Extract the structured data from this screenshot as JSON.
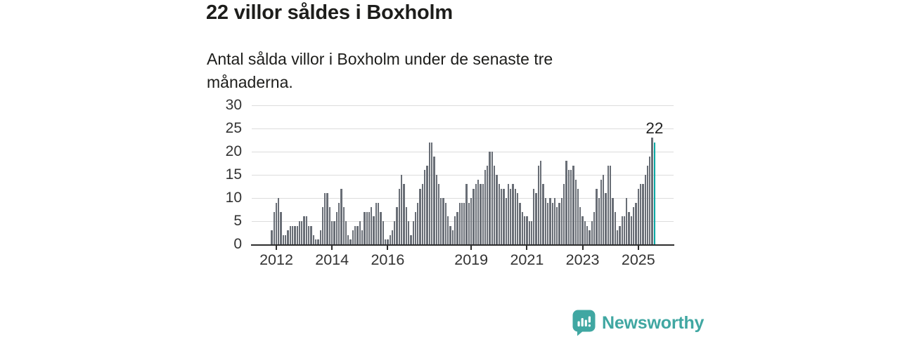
{
  "header": {
    "title": "22 villor såldes i Boxholm",
    "subtitle": "Antal sålda villor i Boxholm under de senaste tre månaderna."
  },
  "chart_data": {
    "type": "bar",
    "title": "22 villor såldes i Boxholm",
    "subtitle": "Antal sålda villor i Boxholm under de senaste tre månaderna.",
    "ylim": [
      0,
      30
    ],
    "yticks": [
      0,
      5,
      10,
      15,
      20,
      25,
      30
    ],
    "grid": true,
    "legend": false,
    "start_month": "2011-11",
    "x_step": "1 month",
    "xticks": [
      {
        "label": "2012",
        "month_index": 2
      },
      {
        "label": "2014",
        "month_index": 26
      },
      {
        "label": "2016",
        "month_index": 50
      },
      {
        "label": "2019",
        "month_index": 86
      },
      {
        "label": "2021",
        "month_index": 110
      },
      {
        "label": "2023",
        "month_index": 134
      },
      {
        "label": "2025",
        "month_index": 158
      }
    ],
    "values": [
      3,
      7,
      9,
      10,
      7,
      2,
      2,
      3,
      4,
      4,
      4,
      4,
      5,
      5,
      6,
      6,
      4,
      4,
      2,
      1,
      1,
      3,
      8,
      11,
      11,
      8,
      5,
      5,
      7,
      9,
      12,
      8,
      5,
      2,
      1,
      3,
      4,
      4,
      5,
      3,
      7,
      7,
      7,
      8,
      6,
      9,
      9,
      7,
      5,
      1,
      1,
      2,
      3,
      5,
      8,
      12,
      15,
      13,
      8,
      5,
      2,
      5,
      7,
      9,
      12,
      13,
      16,
      17,
      22,
      22,
      19,
      15,
      13,
      10,
      10,
      9,
      6,
      4,
      3,
      6,
      7,
      9,
      9,
      9,
      13,
      9,
      10,
      12,
      13,
      14,
      13,
      13,
      16,
      17,
      20,
      20,
      17,
      15,
      13,
      12,
      12,
      10,
      13,
      12,
      13,
      12,
      11,
      9,
      7,
      6,
      6,
      5,
      5,
      12,
      11,
      17,
      18,
      13,
      10,
      9,
      10,
      9,
      10,
      8,
      9,
      10,
      13,
      18,
      16,
      16,
      17,
      14,
      12,
      8,
      6,
      5,
      4,
      3,
      5,
      7,
      12,
      10,
      14,
      15,
      11,
      17,
      17,
      10,
      7,
      3,
      4,
      6,
      6,
      10,
      7,
      6,
      8,
      9,
      12,
      13,
      13,
      15,
      17,
      19,
      23,
      22
    ],
    "highlight_last_value": 22,
    "annotation_label": "22",
    "bar_color": "#696e76",
    "highlight_color": "#09a6a2",
    "gridline_color": "#dcdcdc"
  },
  "branding": {
    "label": "Newsworthy",
    "color": "#40a7a2",
    "icon": "newsworthy-speech-bubble-chart-icon"
  }
}
